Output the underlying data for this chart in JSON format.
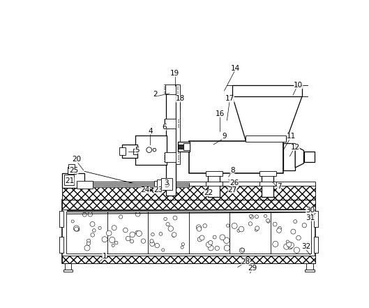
{
  "figsize": [
    5.29,
    4.41
  ],
  "dpi": 100,
  "bg": "#ffffff",
  "labels": [
    [
      "1",
      107,
      408
    ],
    [
      "2",
      202,
      107
    ],
    [
      "3",
      222,
      272
    ],
    [
      "4",
      192,
      175
    ],
    [
      "5",
      168,
      210
    ],
    [
      "6",
      218,
      168
    ],
    [
      "7",
      432,
      278
    ],
    [
      "8",
      345,
      248
    ],
    [
      "9",
      330,
      185
    ],
    [
      "10",
      468,
      90
    ],
    [
      "11",
      455,
      185
    ],
    [
      "12",
      462,
      205
    ],
    [
      "14",
      350,
      58
    ],
    [
      "16",
      322,
      143
    ],
    [
      "17",
      340,
      115
    ],
    [
      "18",
      248,
      115
    ],
    [
      "19",
      238,
      68
    ],
    [
      "20",
      55,
      228
    ],
    [
      "21",
      42,
      268
    ],
    [
      "22",
      300,
      290
    ],
    [
      "23",
      207,
      285
    ],
    [
      "24",
      183,
      285
    ],
    [
      "25",
      50,
      248
    ],
    [
      "26",
      348,
      272
    ],
    [
      "27",
      345,
      285
    ],
    [
      "28",
      370,
      418
    ],
    [
      "29",
      382,
      430
    ],
    [
      "30",
      490,
      322
    ],
    [
      "31",
      490,
      336
    ],
    [
      "32",
      482,
      390
    ]
  ]
}
